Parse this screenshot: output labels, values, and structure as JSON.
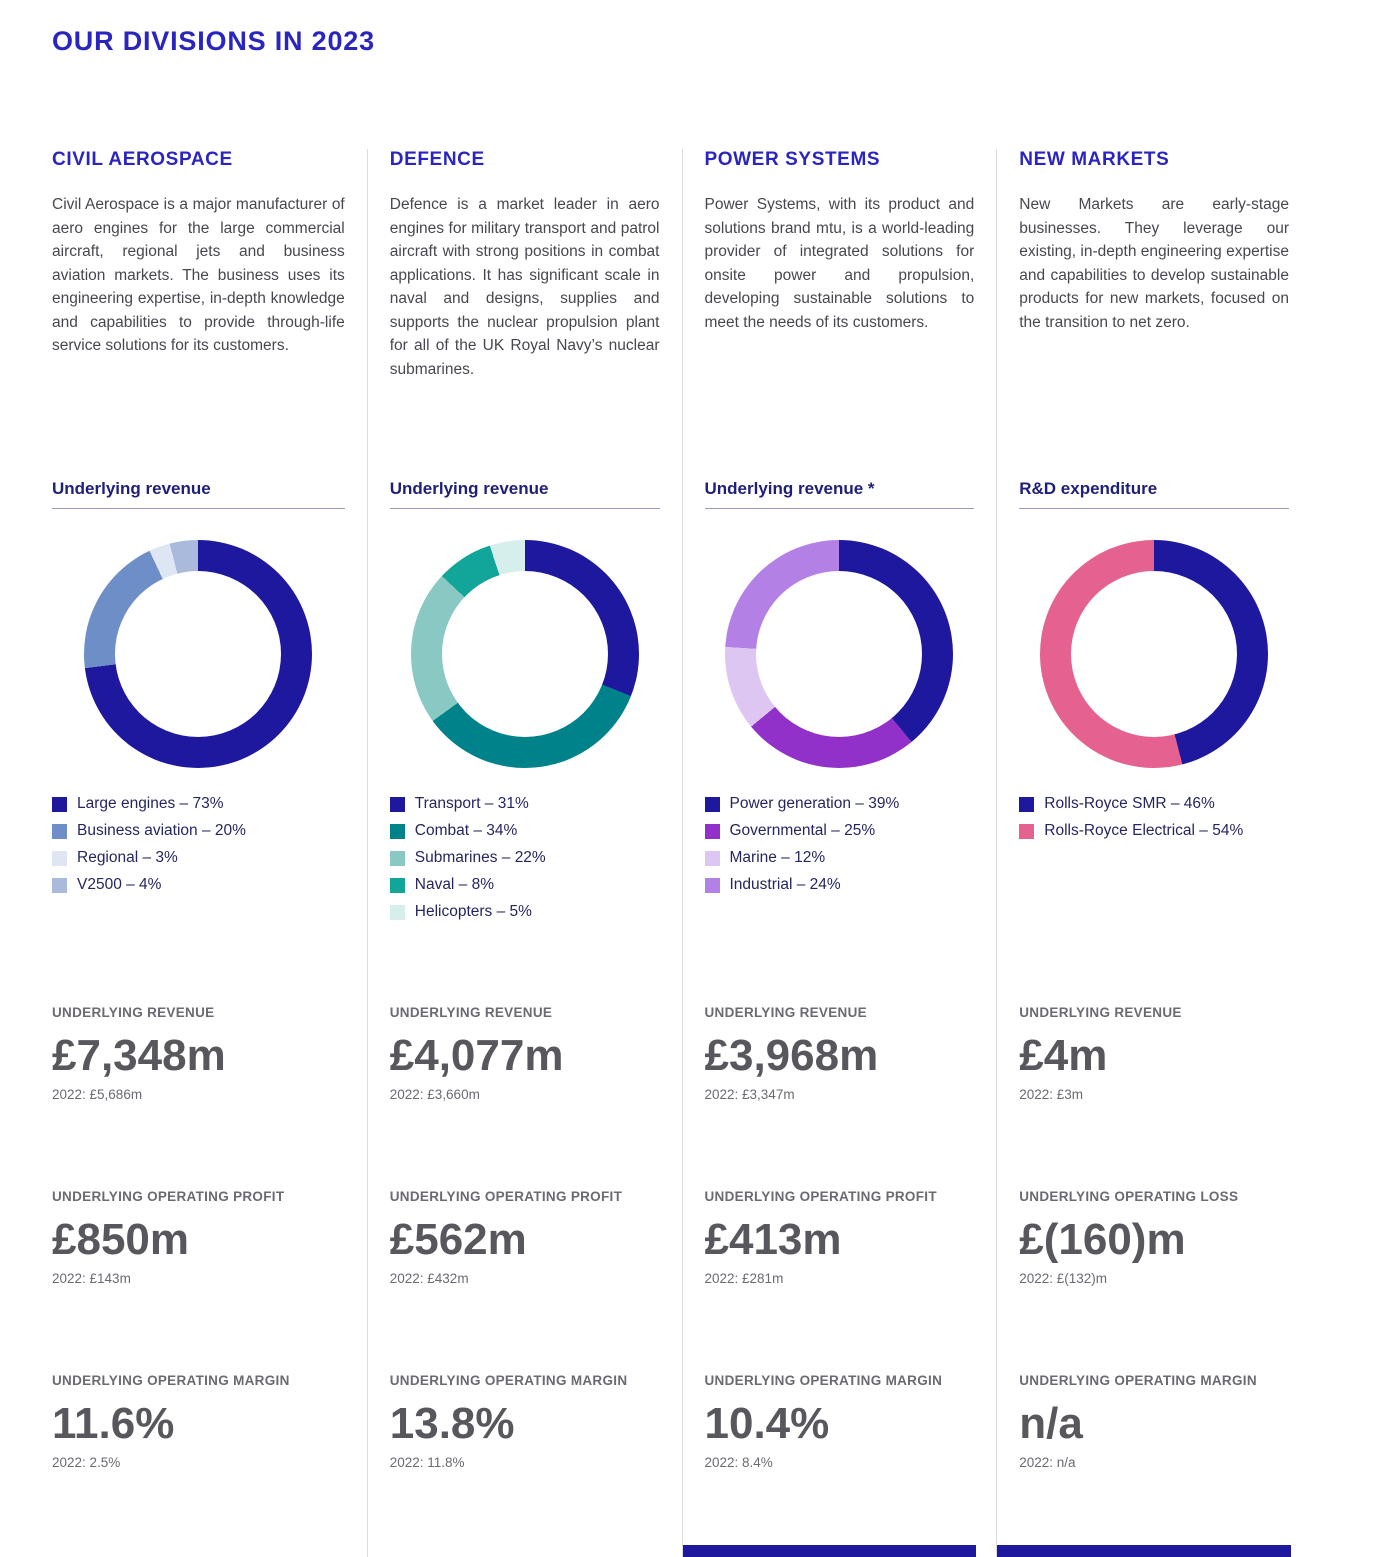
{
  "page": {
    "title": "OUR DIVISIONS IN 2023"
  },
  "colors": {
    "brand_blue": "#2a25c0",
    "navy": "#1e189e",
    "heading_navy": "#20207a",
    "text": "#47474f",
    "muted": "#6a6a72",
    "value_gray": "#57575d",
    "divider": "#dcdce0",
    "rule": "#9a9ac2",
    "legend_text": "#26265f"
  },
  "divisions": [
    {
      "name": "CIVIL AEROSPACE",
      "description": "Civil Aerospace is a major manufacturer of aero engines for the large commercial aircraft, regional jets and business aviation markets. The business uses its engineering expertise, in-depth knowledge and capabilities to provide through-life service solutions for its customers.",
      "metrics": [
        {
          "label": "UNDERLYING REVENUE",
          "value": "£7,348m",
          "prior": "2022: £5,686m"
        },
        {
          "label": "UNDERLYING OPERATING PROFIT",
          "value": "£850m",
          "prior": "2022: £143m"
        },
        {
          "label": "UNDERLYING OPERATING MARGIN",
          "value": "11.6%",
          "prior": "2022: 2.5%"
        }
      ]
    },
    {
      "name": "DEFENCE",
      "description": "Defence is a market leader in aero engines for military transport and patrol aircraft with strong positions in combat applications. It has significant scale in naval and designs, supplies and supports the nuclear propulsion plant for all of the UK Royal Navy’s nuclear submarines.",
      "metrics": [
        {
          "label": "UNDERLYING REVENUE",
          "value": "£4,077m",
          "prior": "2022: £3,660m"
        },
        {
          "label": "UNDERLYING OPERATING PROFIT",
          "value": "£562m",
          "prior": "2022: £432m"
        },
        {
          "label": "UNDERLYING OPERATING MARGIN",
          "value": "13.8%",
          "prior": "2022: 11.8%"
        }
      ]
    },
    {
      "name": "POWER SYSTEMS",
      "description": "Power Systems, with its product and solutions brand mtu, is a world-leading provider of integrated solutions for onsite power and propulsion, developing sustainable solutions to meet the needs of its customers.",
      "metrics": [
        {
          "label": "UNDERLYING REVENUE",
          "value": "£3,968m",
          "prior": "2022: £3,347m"
        },
        {
          "label": "UNDERLYING OPERATING PROFIT",
          "value": "£413m",
          "prior": "2022: £281m"
        },
        {
          "label": "UNDERLYING OPERATING MARGIN",
          "value": "10.4%",
          "prior": "2022: 8.4%"
        }
      ]
    },
    {
      "name": "NEW MARKETS",
      "description": "New Markets are early-stage businesses. They leverage our existing, in-depth engineering expertise and capabilities to develop sustainable products for new markets, focused on the transition to net zero.",
      "metrics": [
        {
          "label": "UNDERLYING REVENUE",
          "value": "£4m",
          "prior": "2022: £3m"
        },
        {
          "label": "UNDERLYING OPERATING LOSS",
          "value": "£(160)m",
          "prior": "2022: £(132)m"
        },
        {
          "label": "UNDERLYING OPERATING MARGIN",
          "value": "n/a",
          "prior": "2022: n/a"
        }
      ]
    }
  ],
  "chart_data": [
    {
      "type": "pie",
      "subtype": "donut",
      "title": "Underlying revenue",
      "unit": "%",
      "segments": [
        {
          "label": "Large engines – 73%",
          "value": 73,
          "color": "#1e189e"
        },
        {
          "label": "Business aviation – 20%",
          "value": 20,
          "color": "#6d8ec7"
        },
        {
          "label": "Regional – 3%",
          "value": 3,
          "color": "#dee5f3"
        },
        {
          "label": "V2500 – 4%",
          "value": 4,
          "color": "#a9badd"
        }
      ]
    },
    {
      "type": "pie",
      "subtype": "donut",
      "title": "Underlying revenue",
      "unit": "%",
      "segments": [
        {
          "label": "Transport – 31%",
          "value": 31,
          "color": "#1e189e"
        },
        {
          "label": "Combat – 34%",
          "value": 34,
          "color": "#00828a"
        },
        {
          "label": "Submarines – 22%",
          "value": 22,
          "color": "#8ac8c3"
        },
        {
          "label": "Naval – 8%",
          "value": 8,
          "color": "#12a599"
        },
        {
          "label": "Helicopters – 5%",
          "value": 5,
          "color": "#d6efec"
        }
      ]
    },
    {
      "type": "pie",
      "subtype": "donut",
      "title": "Underlying revenue *",
      "unit": "%",
      "segments": [
        {
          "label": "Power generation – 39%",
          "value": 39,
          "color": "#1e189e"
        },
        {
          "label": "Governmental – 25%",
          "value": 25,
          "color": "#9231c9"
        },
        {
          "label": "Marine – 12%",
          "value": 12,
          "color": "#ddc7f2"
        },
        {
          "label": "Industrial – 24%",
          "value": 24,
          "color": "#b381e5"
        }
      ]
    },
    {
      "type": "pie",
      "subtype": "donut",
      "title": "R&D expenditure",
      "unit": "%",
      "segments": [
        {
          "label": "Rolls-Royce SMR – 46%",
          "value": 46,
          "color": "#1e189e"
        },
        {
          "label": "Rolls-Royce Electrical – 54%",
          "value": 54,
          "color": "#e5618f"
        }
      ]
    }
  ]
}
